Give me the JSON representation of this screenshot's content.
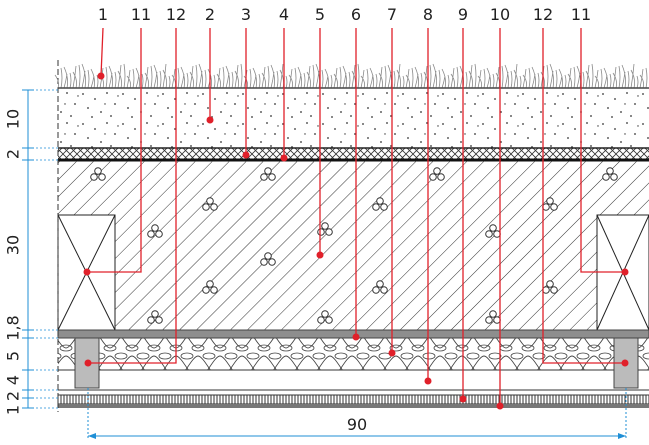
{
  "callouts": [
    "1",
    "11",
    "12",
    "2",
    "3",
    "4",
    "5",
    "6",
    "7",
    "8",
    "9",
    "10",
    "12",
    "11"
  ],
  "dimensions": {
    "left": [
      "10",
      "2",
      "30",
      "1,8",
      "5",
      "4",
      "2",
      "1"
    ],
    "bottom": "90"
  }
}
